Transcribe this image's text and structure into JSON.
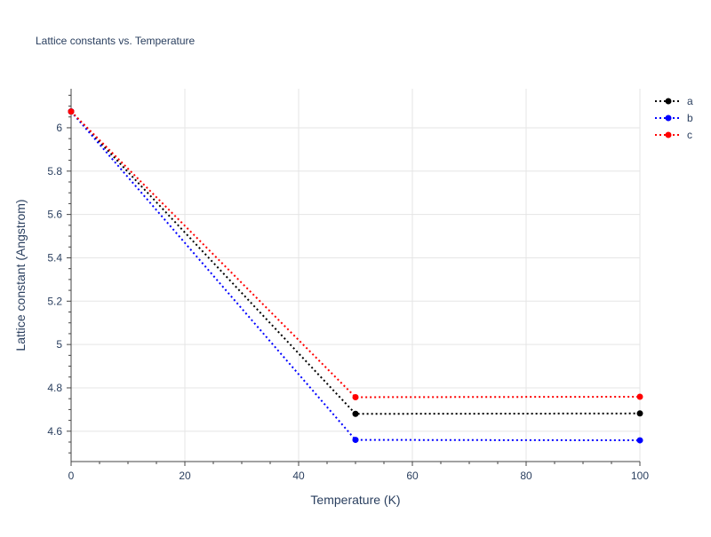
{
  "chart_data": {
    "type": "line",
    "title": "Lattice constants vs. Temperature",
    "xlabel": "Temperature (K)",
    "ylabel": "Lattice constant (Angstrom)",
    "xlim": [
      0,
      100
    ],
    "ylim": [
      4.46,
      6.18
    ],
    "x_ticks": [
      0,
      20,
      40,
      60,
      80,
      100
    ],
    "y_ticks": [
      4.6,
      4.8,
      5,
      5.2,
      5.4,
      5.6,
      5.8,
      6
    ],
    "grid": true,
    "legend_position": "top-right",
    "x": [
      0,
      50,
      100
    ],
    "series": [
      {
        "name": "a",
        "color": "#000000",
        "values": [
          6.075,
          4.68,
          4.682
        ]
      },
      {
        "name": "b",
        "color": "#0000ff",
        "values": [
          6.075,
          4.56,
          4.558
        ]
      },
      {
        "name": "c",
        "color": "#ff0000",
        "values": [
          6.075,
          4.757,
          4.759
        ]
      }
    ]
  }
}
